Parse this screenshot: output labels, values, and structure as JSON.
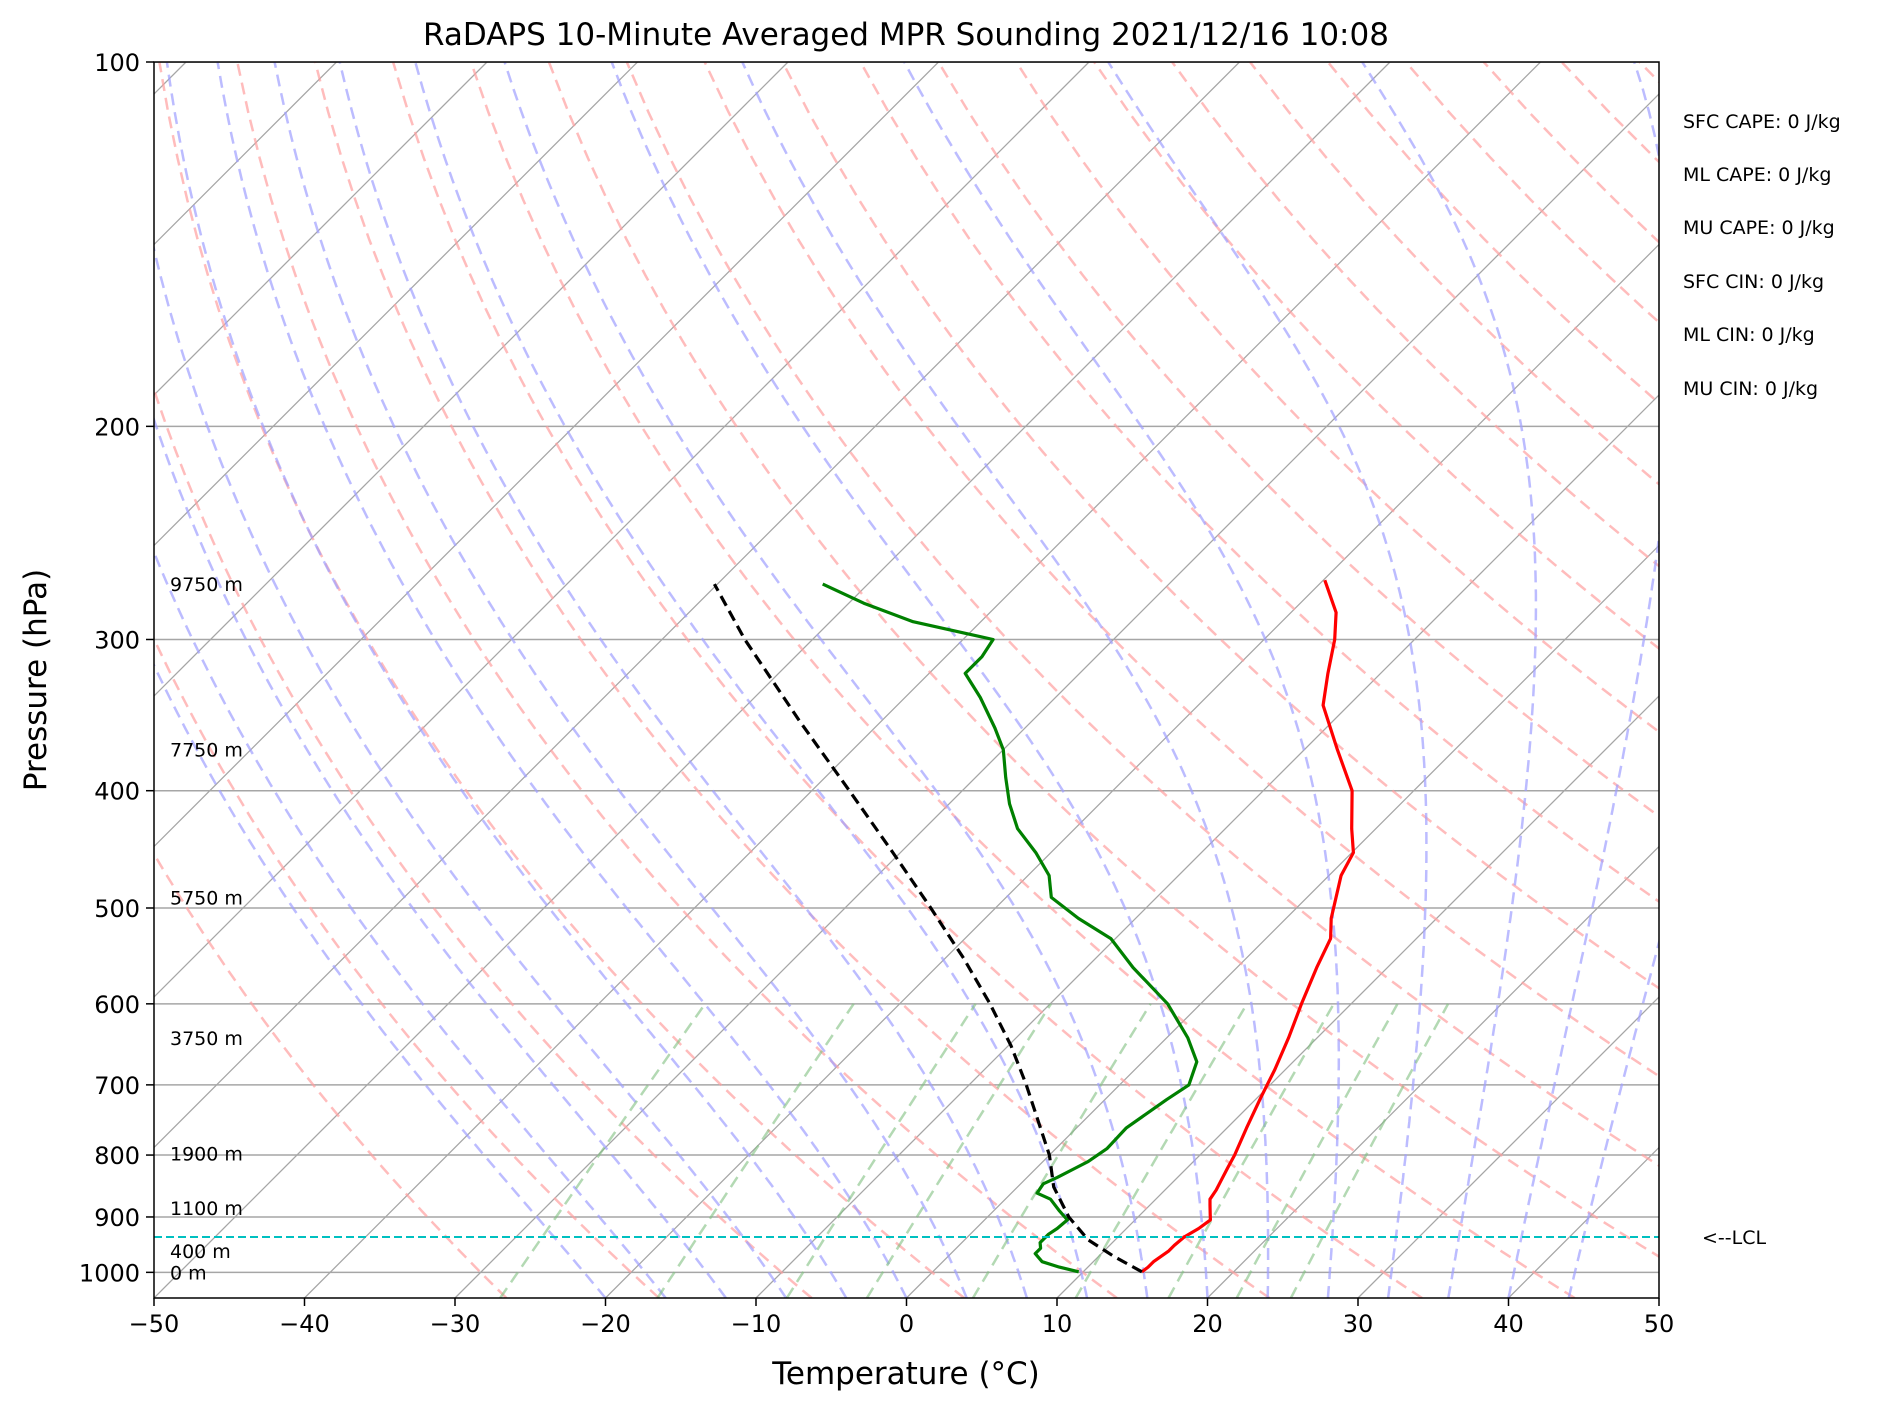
{
  "chart_data": {
    "type": "line",
    "title": "RaDAPS 10-Minute Averaged MPR Sounding 2021/12/16 10:08",
    "xlabel": "Temperature (°C)",
    "ylabel": "Pressure (hPa)",
    "xlim": [
      -50,
      50
    ],
    "ylim": [
      1050,
      100
    ],
    "y_scale": "log",
    "x_ticks": [
      "−50",
      "−40",
      "−30",
      "−20",
      "−10",
      "0",
      "10",
      "20",
      "30",
      "40",
      "50"
    ],
    "y_ticks": [
      {
        "p": 100,
        "label": "100"
      },
      {
        "p": 200,
        "label": "200"
      },
      {
        "p": 300,
        "label": "300"
      },
      {
        "p": 400,
        "label": "400"
      },
      {
        "p": 500,
        "label": "500"
      },
      {
        "p": 600,
        "label": "600"
      },
      {
        "p": 700,
        "label": "700"
      },
      {
        "p": 800,
        "label": "800"
      },
      {
        "p": 900,
        "label": "900"
      },
      {
        "p": 1000,
        "label": "1000"
      }
    ],
    "skew": 45,
    "grid": true,
    "series": [
      {
        "role": "temperature",
        "color": "#ff0000",
        "points": [
          [
            999,
            13.9
          ],
          [
            990,
            14.0
          ],
          [
            980,
            14.0
          ],
          [
            960,
            14.3
          ],
          [
            950,
            14.3
          ],
          [
            935,
            14.4
          ],
          [
            920,
            14.8
          ],
          [
            905,
            15.0
          ],
          [
            895,
            14.6
          ],
          [
            880,
            14.0
          ],
          [
            870,
            13.6
          ],
          [
            855,
            13.4
          ],
          [
            840,
            13.1
          ],
          [
            820,
            12.7
          ],
          [
            800,
            12.3
          ],
          [
            760,
            11.3
          ],
          [
            720,
            10.3
          ],
          [
            700,
            9.8
          ],
          [
            680,
            9.3
          ],
          [
            640,
            8.1
          ],
          [
            600,
            6.7
          ],
          [
            560,
            5.3
          ],
          [
            530,
            4.3
          ],
          [
            510,
            3.0
          ],
          [
            470,
            0.8
          ],
          [
            450,
            0.1
          ],
          [
            430,
            -1.6
          ],
          [
            400,
            -4.1
          ],
          [
            370,
            -7.8
          ],
          [
            340,
            -11.7
          ],
          [
            320,
            -13.5
          ],
          [
            300,
            -15.3
          ],
          [
            285,
            -17.0
          ],
          [
            268,
            -19.9
          ]
        ]
      },
      {
        "role": "dewpoint",
        "color": "#008000",
        "points": [
          [
            999,
            9.7
          ],
          [
            990,
            8.1
          ],
          [
            980,
            6.6
          ],
          [
            965,
            5.6
          ],
          [
            955,
            5.6
          ],
          [
            945,
            5.2
          ],
          [
            930,
            5.2
          ],
          [
            920,
            5.4
          ],
          [
            905,
            5.5
          ],
          [
            890,
            4.4
          ],
          [
            870,
            3.0
          ],
          [
            860,
            1.7
          ],
          [
            845,
            1.5
          ],
          [
            835,
            2.0
          ],
          [
            820,
            2.6
          ],
          [
            810,
            3.0
          ],
          [
            790,
            3.4
          ],
          [
            760,
            3.3
          ],
          [
            720,
            4.1
          ],
          [
            700,
            4.6
          ],
          [
            670,
            3.6
          ],
          [
            640,
            1.4
          ],
          [
            600,
            -2.2
          ],
          [
            560,
            -6.9
          ],
          [
            530,
            -10.3
          ],
          [
            510,
            -13.8
          ],
          [
            490,
            -17.0
          ],
          [
            470,
            -18.6
          ],
          [
            450,
            -21.0
          ],
          [
            430,
            -23.8
          ],
          [
            410,
            -26.0
          ],
          [
            390,
            -28.0
          ],
          [
            370,
            -30.0
          ],
          [
            355,
            -32.0
          ],
          [
            335,
            -35.0
          ],
          [
            320,
            -37.6
          ],
          [
            310,
            -37.6
          ],
          [
            300,
            -38.0
          ],
          [
            290,
            -44.5
          ],
          [
            280,
            -49.0
          ],
          [
            270,
            -53.0
          ]
        ]
      },
      {
        "role": "parcel",
        "color": "#000000",
        "dash": "dashed",
        "points": [
          [
            999,
            13.9
          ],
          [
            970,
            11.0
          ],
          [
            940,
            8.2
          ],
          [
            900,
            5.4
          ],
          [
            850,
            2.4
          ],
          [
            800,
            0.0
          ],
          [
            750,
            -3.0
          ],
          [
            700,
            -6.2
          ],
          [
            650,
            -9.8
          ],
          [
            600,
            -14.0
          ],
          [
            550,
            -18.8
          ],
          [
            500,
            -24.3
          ],
          [
            450,
            -30.5
          ],
          [
            400,
            -37.5
          ],
          [
            350,
            -45.5
          ],
          [
            300,
            -54.5
          ],
          [
            270,
            -60.2
          ]
        ]
      }
    ],
    "lcl_pressure": 935,
    "lcl_label": "<--LCL",
    "lcl_color": "#00c0c0",
    "height_labels": [
      {
        "p": 270,
        "label": "9750 m"
      },
      {
        "p": 370,
        "label": "7750 m"
      },
      {
        "p": 490,
        "label": "5750 m"
      },
      {
        "p": 640,
        "label": "3750 m"
      },
      {
        "p": 798,
        "label": "1900 m"
      },
      {
        "p": 885,
        "label": "1100 m"
      },
      {
        "p": 960,
        "label": "400 m"
      },
      {
        "p": 1000,
        "label": "0 m"
      }
    ],
    "indices": [
      "SFC CAPE: 0 J/kg",
      "ML CAPE: 0 J/kg",
      "MU CAPE: 0 J/kg",
      "SFC CIN: 0 J/kg",
      "ML CIN: 0 J/kg",
      "MU CIN: 0 J/kg"
    ],
    "background_colors": {
      "isotherm": "#a6a6a6",
      "isobar": "#a6a6a6",
      "dry_adiabat": "#ffa0a0",
      "moist_adiabat": "#a0a0ff",
      "mixing_ratio": "#80c080"
    }
  }
}
